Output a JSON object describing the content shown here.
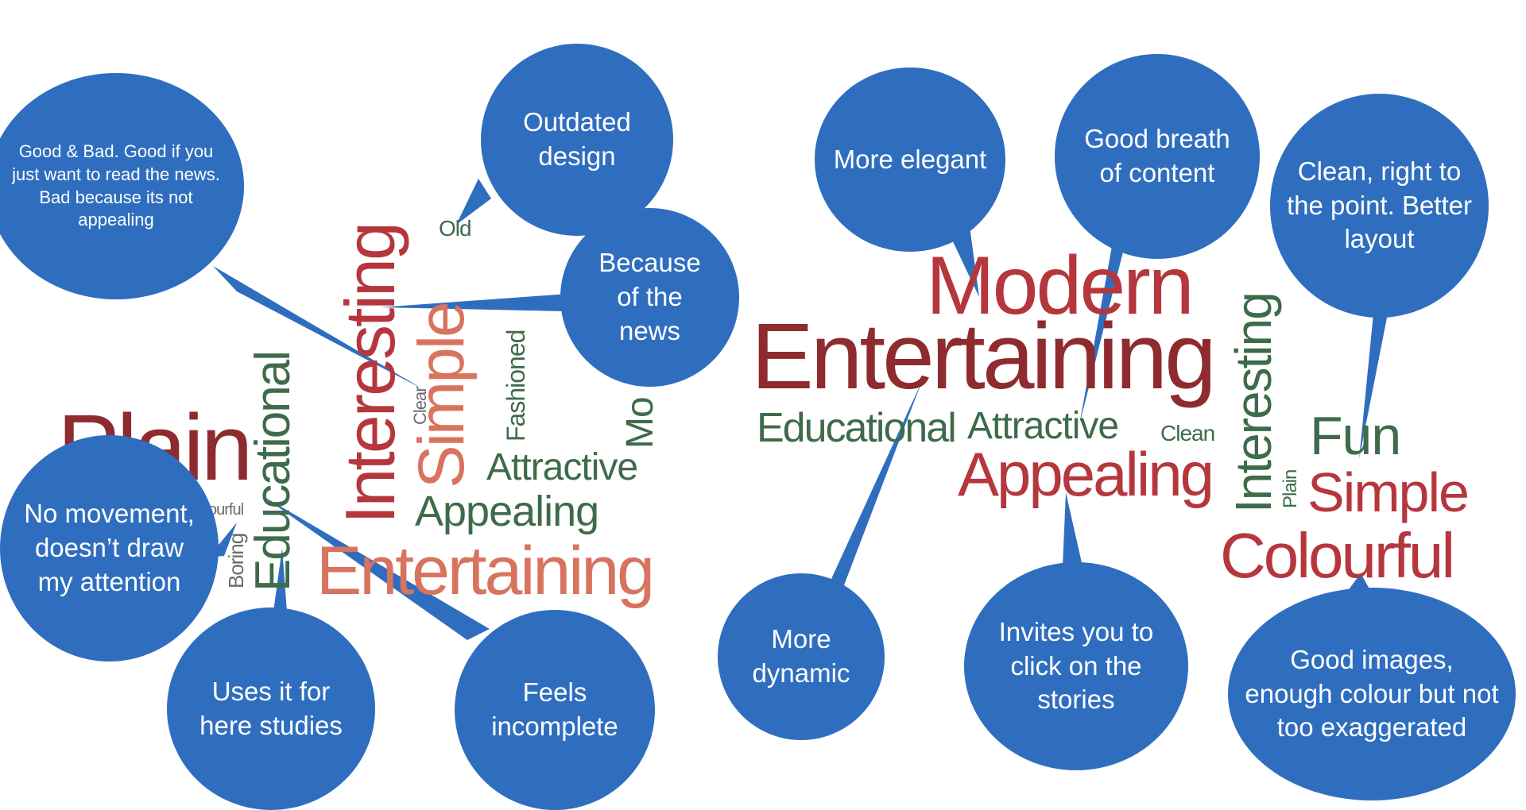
{
  "colors": {
    "bubble": "#2f6ebf",
    "dark_red": "#8e2b2e",
    "red": "#b5373d",
    "salmon": "#d8735f",
    "green": "#3e6b4a",
    "gray": "#6b6b6b"
  },
  "left_cloud": {
    "plain": "Plain",
    "educational": "Educational",
    "interesting": "Interesting",
    "simple": "Simple",
    "clear": "Clear",
    "old": "Old",
    "fashioned": "Fashioned",
    "mo": "Mo",
    "attractive": "Attractive",
    "appealing": "Appealing",
    "entertaining": "Entertaining",
    "colourful_fragment": "ourful",
    "boring": "Boring"
  },
  "right_cloud": {
    "modern": "Modern",
    "entertaining": "Entertaining",
    "educational": "Educational",
    "attractive": "Attractive",
    "clean": "Clean",
    "appealing": "Appealing",
    "interesting": "Interesting",
    "plain": "Plain",
    "fun": "Fun",
    "simple": "Simple",
    "colourful": "Colourful"
  },
  "bubbles": {
    "good_bad": "Good & Bad. Good if you just want to read the news. Bad because its not appealing",
    "outdated": "Outdated design",
    "because_news": "Because of the news",
    "no_movement": "No movement, doesn’t draw my attention",
    "uses_studies": "Uses it for here studies",
    "feels_incomplete": "Feels incomplete",
    "more_elegant": "More elegant",
    "good_breath": "Good breath of content",
    "clean_point": "Clean, right to the point. Better layout",
    "more_dynamic": "More dynamic",
    "invites_click": "Invites you to click on the stories",
    "good_images": "Good images, enough colour but not too exaggerated"
  }
}
